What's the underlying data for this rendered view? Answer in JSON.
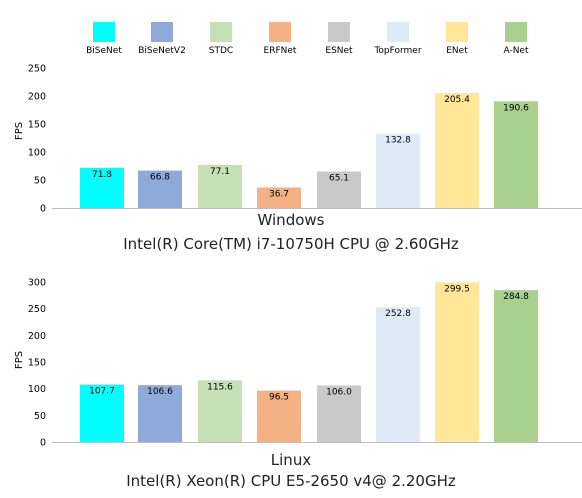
{
  "legend": [
    {
      "name": "BiSeNet",
      "color": "#00ffff"
    },
    {
      "name": "BiSeNetV2",
      "color": "#8eaadb"
    },
    {
      "name": "STDC",
      "color": "#c5e0b4"
    },
    {
      "name": "ERFNet",
      "color": "#f4b183"
    },
    {
      "name": "ESNet",
      "color": "#c9c9c9"
    },
    {
      "name": "TopFormer",
      "color": "#deebf7"
    },
    {
      "name": "ENet",
      "color": "#ffe699"
    },
    {
      "name": "A-Net",
      "color": "#a9d18e"
    }
  ],
  "chart_data": [
    {
      "type": "bar",
      "title": "Windows",
      "subtitle": "Intel(R) Core(TM) i7-10750H CPU @ 2.60GHz",
      "ylabel": "FPS",
      "xlabel": "",
      "ylim": [
        0,
        250
      ],
      "yticks": [
        0,
        50,
        100,
        150,
        200,
        250
      ],
      "categories": [
        "BiSeNet",
        "BiSeNetV2",
        "STDC",
        "ERFNet",
        "ESNet",
        "TopFormer",
        "ENet",
        "A-Net"
      ],
      "values": [
        71.8,
        66.8,
        77.1,
        36.7,
        65.1,
        132.8,
        205.4,
        190.6
      ],
      "value_labels": [
        "71.8",
        "66.8",
        "77.1",
        "36.7",
        "65.1",
        "132.8",
        "205.4",
        "190.6"
      ],
      "grid": false
    },
    {
      "type": "bar",
      "title": "Linux",
      "subtitle": "Intel(R) Xeon(R) CPU E5-2650 v4@ 2.20GHz",
      "ylabel": "FPS",
      "xlabel": "",
      "ylim": [
        0,
        300
      ],
      "yticks": [
        0,
        50,
        100,
        150,
        200,
        250,
        300
      ],
      "categories": [
        "BiSeNet",
        "BiSeNetV2",
        "STDC",
        "ERFNet",
        "ESNet",
        "TopFormer",
        "ENet",
        "A-Net"
      ],
      "values": [
        107.7,
        106.6,
        115.6,
        96.5,
        106.0,
        252.8,
        299.5,
        284.8
      ],
      "value_labels": [
        "107.7",
        "106.6",
        "115.6",
        "96.5",
        "106.0",
        "252.8",
        "299.5",
        "284.8"
      ],
      "grid": false
    }
  ]
}
